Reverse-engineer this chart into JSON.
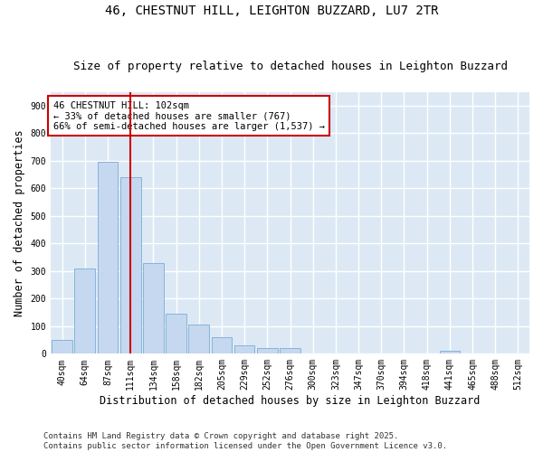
{
  "title": "46, CHESTNUT HILL, LEIGHTON BUZZARD, LU7 2TR",
  "subtitle": "Size of property relative to detached houses in Leighton Buzzard",
  "xlabel": "Distribution of detached houses by size in Leighton Buzzard",
  "ylabel": "Number of detached properties",
  "bar_color": "#c5d8f0",
  "bar_edge_color": "#7aadd4",
  "background_color": "#dce9f5",
  "grid_color": "#ffffff",
  "fig_background": "#ffffff",
  "categories": [
    "40sqm",
    "64sqm",
    "87sqm",
    "111sqm",
    "134sqm",
    "158sqm",
    "182sqm",
    "205sqm",
    "229sqm",
    "252sqm",
    "276sqm",
    "300sqm",
    "323sqm",
    "347sqm",
    "370sqm",
    "394sqm",
    "418sqm",
    "441sqm",
    "465sqm",
    "488sqm",
    "512sqm"
  ],
  "values": [
    50,
    310,
    695,
    640,
    330,
    145,
    105,
    60,
    30,
    20,
    20,
    0,
    0,
    0,
    0,
    0,
    0,
    10,
    0,
    0,
    0
  ],
  "ylim": [
    0,
    950
  ],
  "yticks": [
    0,
    100,
    200,
    300,
    400,
    500,
    600,
    700,
    800,
    900
  ],
  "vline_x": 3.0,
  "vline_color": "#cc0000",
  "annotation_text": "46 CHESTNUT HILL: 102sqm\n← 33% of detached houses are smaller (767)\n66% of semi-detached houses are larger (1,537) →",
  "annotation_box_color": "#ffffff",
  "annotation_box_edge": "#cc0000",
  "footer": "Contains HM Land Registry data © Crown copyright and database right 2025.\nContains public sector information licensed under the Open Government Licence v3.0.",
  "title_fontsize": 10,
  "subtitle_fontsize": 9,
  "axis_label_fontsize": 8.5,
  "tick_fontsize": 7,
  "annotation_fontsize": 7.5,
  "footer_fontsize": 6.5
}
